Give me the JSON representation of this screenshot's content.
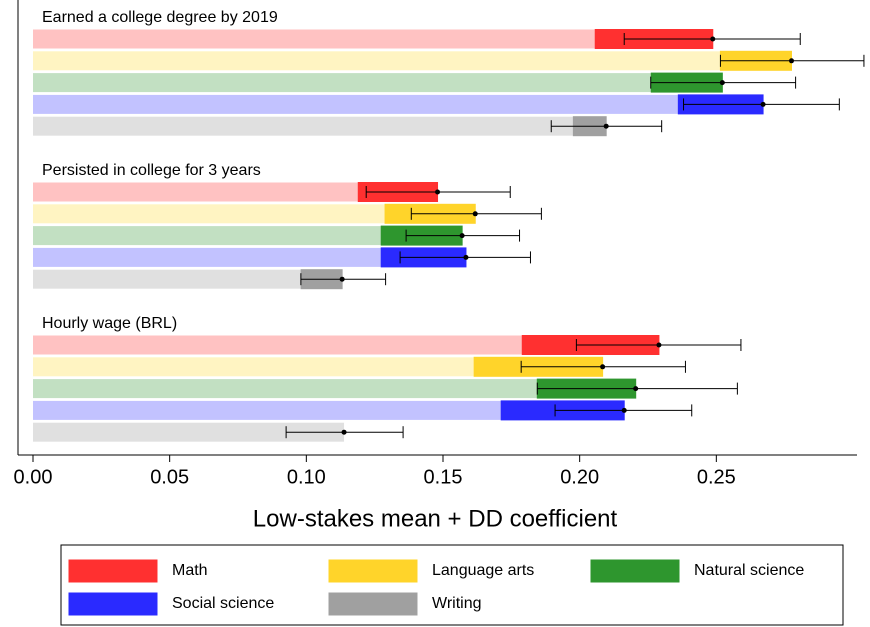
{
  "chart_data": {
    "type": "bar",
    "orientation": "horizontal",
    "xlabel": "Low-stakes mean + DD coefficient",
    "categories": [
      "Earned a college degree by 2019",
      "Persisted in college for 3 years",
      "Hourly wage (BRL)"
    ],
    "xlim": [
      0,
      0.3
    ],
    "xticks": [
      {
        "value": 0,
        "label": "0.00"
      },
      0.05,
      {
        "value": 0.1,
        "label": "0.10"
      },
      0.15,
      {
        "value": 0.2,
        "label": "0.20"
      },
      0.25
    ],
    "series": [
      {
        "name": "Math",
        "color": "#ff3030",
        "light_color": "#ffc2c2",
        "base": [
          0.2057,
          0.119,
          0.179
        ],
        "values": [
          0.043,
          0.029,
          0.05
        ],
        "ci_low": [
          0.2163,
          0.1219,
          0.1988
        ],
        "ci_high": [
          0.2807,
          0.1746,
          0.259
        ]
      },
      {
        "name": "Language arts",
        "color": "#ffd42a",
        "light_color": "#fff4c2",
        "base": [
          0.2515,
          0.1288,
          0.1614
        ],
        "values": [
          0.026,
          0.033,
          0.047
        ],
        "ci_low": [
          0.2515,
          0.1384,
          0.1786
        ],
        "ci_high": [
          0.304,
          0.186,
          0.2387
        ]
      },
      {
        "name": "Natural science",
        "color": "#2e962e",
        "light_color": "#c2e0c2",
        "base": [
          0.2262,
          0.1274,
          0.1845
        ],
        "values": [
          0.026,
          0.0296,
          0.036
        ],
        "ci_low": [
          0.226,
          0.1365,
          0.1845
        ],
        "ci_high": [
          0.279,
          0.178,
          0.2577
        ]
      },
      {
        "name": "Social science",
        "color": "#2a2aff",
        "light_color": "#c2c2ff",
        "base": [
          0.2361,
          0.1274,
          0.1713
        ],
        "values": [
          0.031,
          0.031,
          0.045
        ],
        "ci_low": [
          0.238,
          0.1343,
          0.191
        ],
        "ci_high": [
          0.295,
          0.182,
          0.241
        ]
      },
      {
        "name": "Writing",
        "color": "#a0a0a0",
        "light_color": "#e0e0e0",
        "base": [
          0.1977,
          0.0981,
          0.1138
        ],
        "values": [
          0.012,
          0.015,
          0
        ],
        "ci_low": [
          0.1896,
          0.098,
          0.0926
        ],
        "ci_high": [
          0.23,
          0.129,
          0.1354
        ]
      }
    ]
  }
}
